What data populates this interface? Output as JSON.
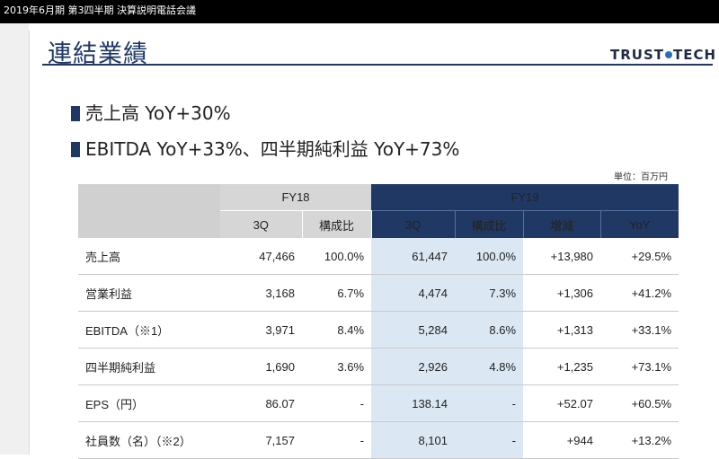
{
  "window": {
    "title": "2019年6月期 第3四半期 決算説明電話会議"
  },
  "slide": {
    "title": "連結業績",
    "logo": "TRUST TECH",
    "bullets": [
      "売上高 YoY+30%",
      "EBITDA YoY+33%、四半期純利益 YoY+73%"
    ],
    "unit_note": "単位：百万円"
  },
  "table": {
    "group_headers": {
      "fy18": "FY18",
      "fy19": "FY19"
    },
    "sub_headers": {
      "q3_fy18": "3Q",
      "ratio_fy18": "構成比",
      "q3_fy19": "3Q",
      "ratio_fy19": "構成比",
      "change": "増減",
      "yoy": "YoY"
    },
    "rows": [
      {
        "label": "売上高",
        "fy18_3q": "47,466",
        "fy18_ratio": "100.0%",
        "fy19_3q": "61,447",
        "fy19_ratio": "100.0%",
        "change": "+13,980",
        "yoy": "+29.5%"
      },
      {
        "label": "営業利益",
        "fy18_3q": "3,168",
        "fy18_ratio": "6.7%",
        "fy19_3q": "4,474",
        "fy19_ratio": "7.3%",
        "change": "+1,306",
        "yoy": "+41.2%"
      },
      {
        "label": "EBITDA（※1）",
        "fy18_3q": "3,971",
        "fy18_ratio": "8.4%",
        "fy19_3q": "5,284",
        "fy19_ratio": "8.6%",
        "change": "+1,313",
        "yoy": "+33.1%"
      },
      {
        "label": "四半期純利益",
        "fy18_3q": "1,690",
        "fy18_ratio": "3.6%",
        "fy19_3q": "2,926",
        "fy19_ratio": "4.8%",
        "change": "+1,235",
        "yoy": "+73.1%"
      },
      {
        "label": "EPS（円）",
        "fy18_3q": "86.07",
        "fy18_ratio": "-",
        "fy19_3q": "138.14",
        "fy19_ratio": "-",
        "change": "+52.07",
        "yoy": "+60.5%"
      },
      {
        "label": "社員数（名）（※2）",
        "fy18_3q": "7,157",
        "fy18_ratio": "-",
        "fy19_3q": "8,101",
        "fy19_ratio": "-",
        "change": "+944",
        "yoy": "+13.2%"
      }
    ]
  },
  "colors": {
    "navy": "#1f3864",
    "highlight": "#dbe8f4",
    "header_gray": "#d6d6d6"
  }
}
